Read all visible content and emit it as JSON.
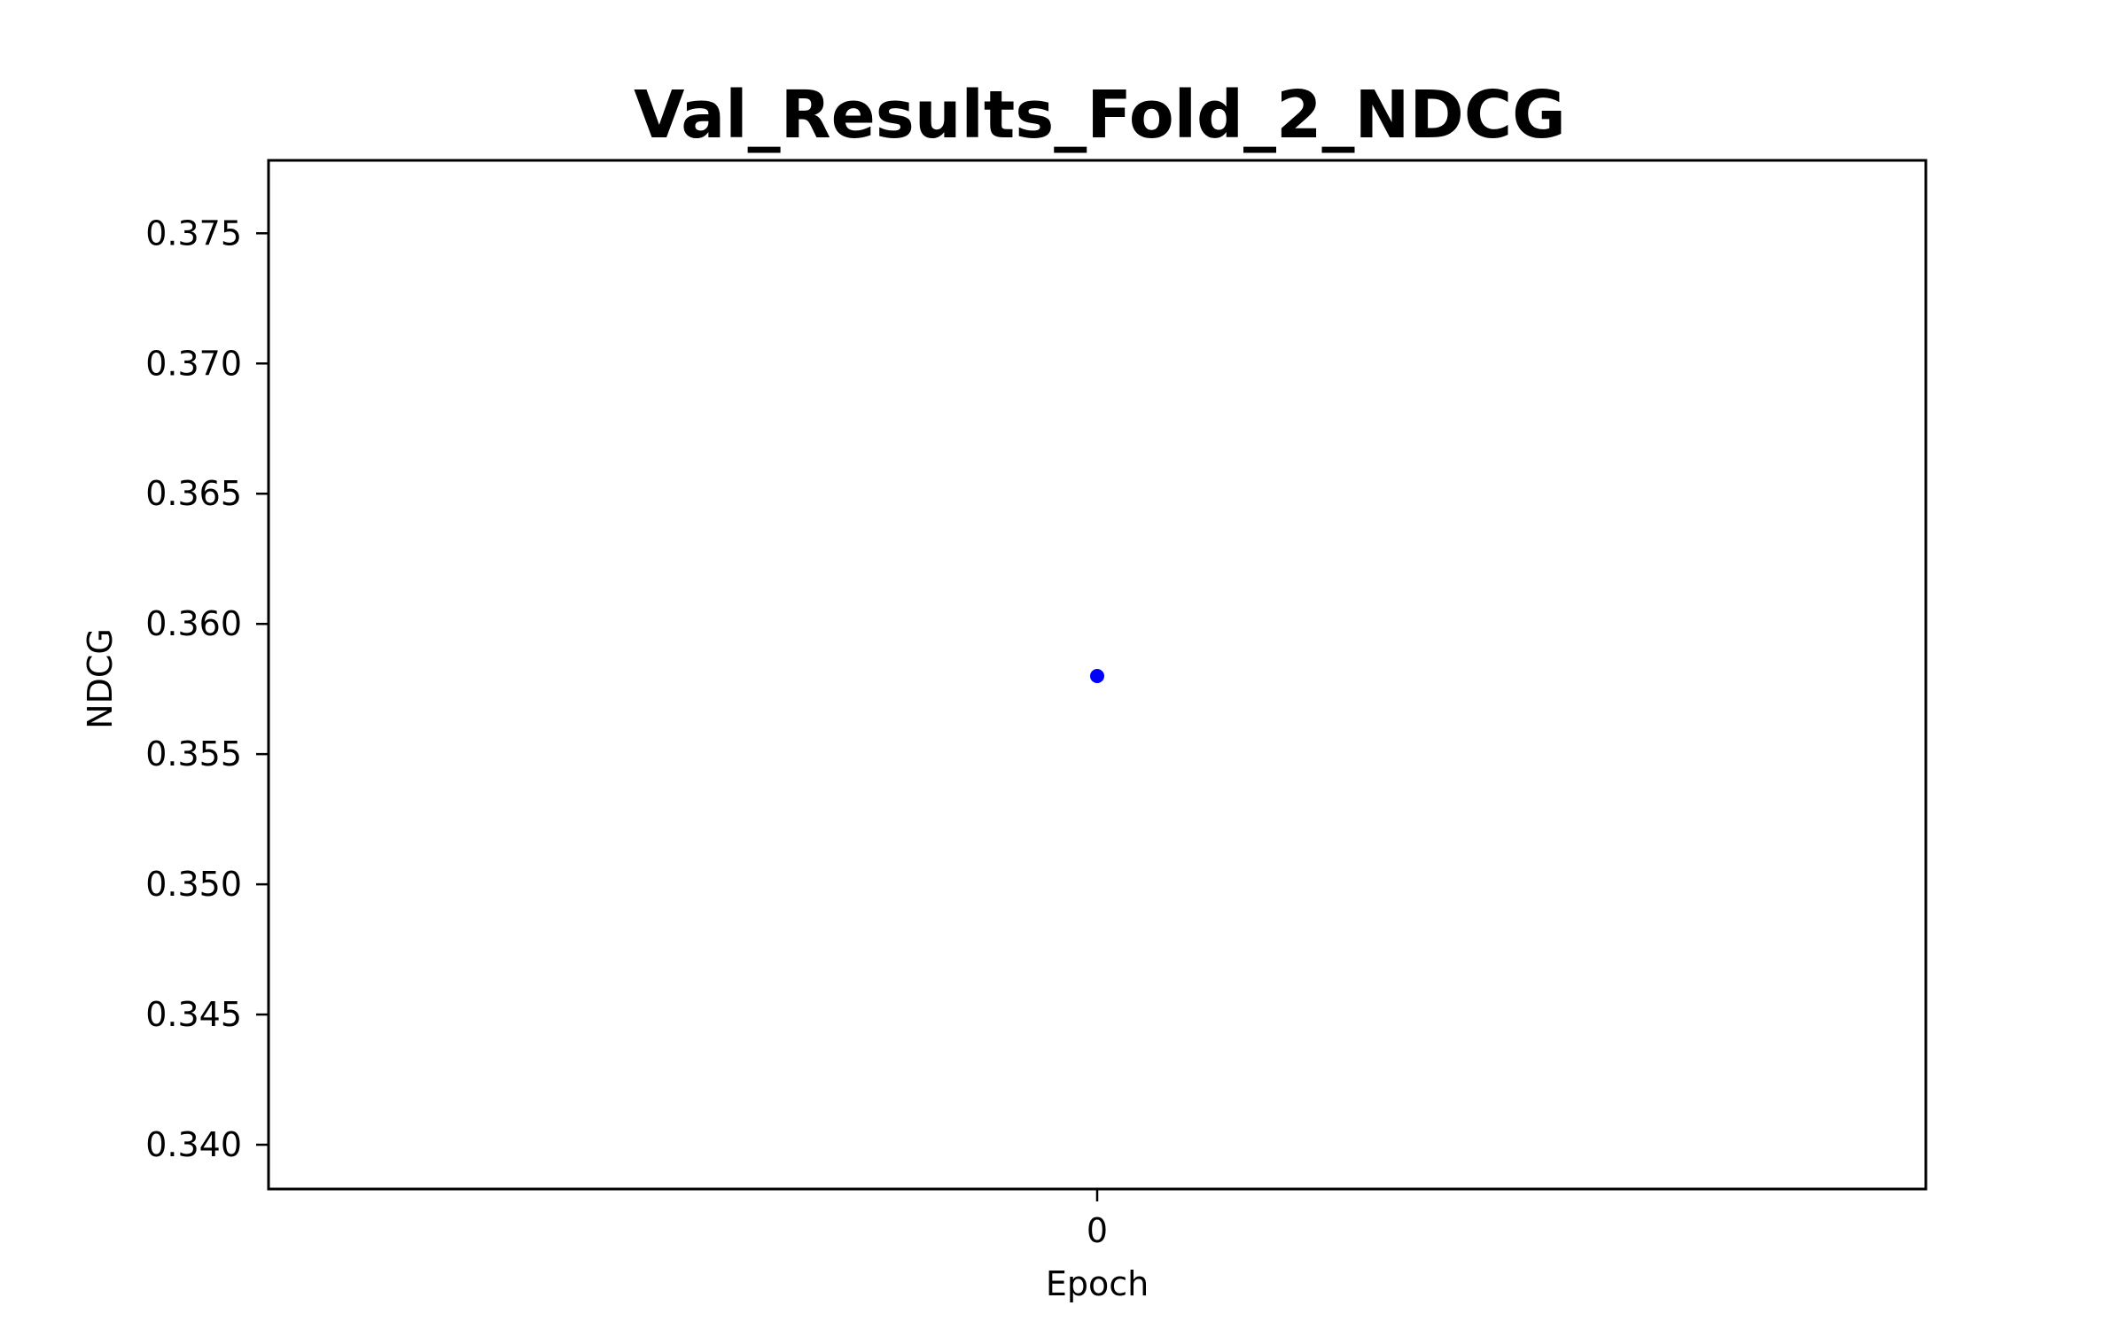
{
  "chart_data": {
    "type": "scatter",
    "title": "Val_Results_Fold_2_NDCG",
    "xlabel": "Epoch",
    "ylabel": "NDCG",
    "x_ticks": [
      0
    ],
    "x_tick_labels": [
      "0"
    ],
    "xlim": [
      -0.05,
      0.05
    ],
    "y_ticks": [
      0.34,
      0.345,
      0.35,
      0.355,
      0.36,
      0.365,
      0.37,
      0.375
    ],
    "y_tick_labels": [
      "0.340",
      "0.345",
      "0.350",
      "0.355",
      "0.360",
      "0.365",
      "0.370",
      "0.375"
    ],
    "ylim": [
      0.3383,
      0.3778
    ],
    "grid": false,
    "legend": "none",
    "series": [
      {
        "x": [
          0
        ],
        "y": [
          0.358
        ],
        "color": "#0000ff"
      }
    ]
  }
}
